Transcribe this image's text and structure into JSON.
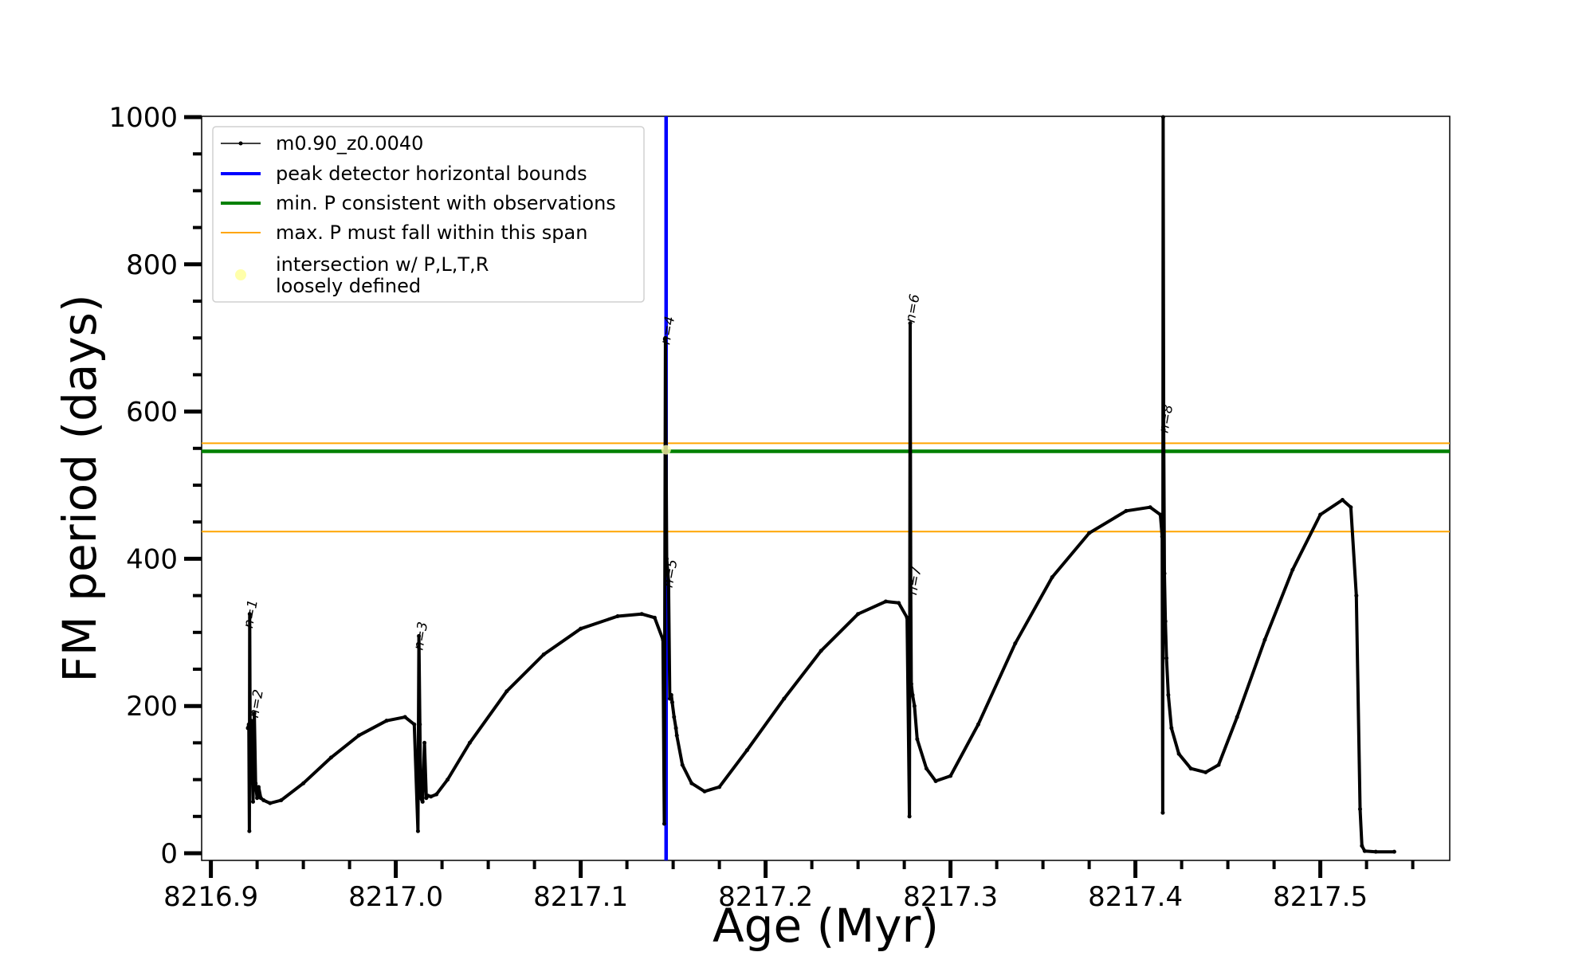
{
  "chart_data": {
    "type": "line",
    "xlabel": "Age (Myr)",
    "ylabel": "FM period (days)",
    "xlim": [
      8216.895,
      8217.57
    ],
    "ylim": [
      0,
      1000
    ],
    "x_ticks": [
      8216.9,
      8217.0,
      8217.1,
      8217.2,
      8217.3,
      8217.4,
      8217.5
    ],
    "x_tick_labels": [
      "8216.9",
      "8217.0",
      "8217.1",
      "8217.2",
      "8217.3",
      "8217.4",
      "8217.5"
    ],
    "x_minor_step": 0.025,
    "y_ticks": [
      0,
      200,
      400,
      600,
      800,
      1000
    ],
    "y_tick_labels": [
      "0",
      "200",
      "400",
      "600",
      "800",
      "1000"
    ],
    "y_minor_step": 50,
    "grid": false,
    "legend_position": "top-left",
    "legend": [
      {
        "label": "m0.90_z0.0040",
        "kind": "line-marker",
        "color": "#000000"
      },
      {
        "label": "peak detector horizontal bounds",
        "kind": "line",
        "color": "#0000ff"
      },
      {
        "label": "min. P consistent with observations",
        "kind": "line",
        "color": "#008000"
      },
      {
        "label": "max. P must fall within this span",
        "kind": "line",
        "color": "#ffa500"
      },
      {
        "label_lines": [
          "intersection w/ P,L,T,R",
          "loosely defined"
        ],
        "kind": "marker",
        "color": "#ffffaa"
      }
    ],
    "series": [
      {
        "name": "m0.90_z0.0040",
        "color": "#000000",
        "x": [
          8216.92,
          8216.9205,
          8216.9208,
          8216.921,
          8216.9212,
          8216.9218,
          8216.9228,
          8216.9235,
          8216.9242,
          8216.925,
          8216.9258,
          8216.927,
          8216.9285,
          8216.932,
          8216.938,
          8216.95,
          8216.965,
          8216.98,
          8216.995,
          8217.005,
          8217.01,
          8217.012,
          8217.0125,
          8217.013,
          8217.0135,
          8217.0145,
          8217.0155,
          8217.0165,
          8217.0175,
          8217.019,
          8217.022,
          8217.028,
          8217.04,
          8217.06,
          8217.08,
          8217.1,
          8217.12,
          8217.133,
          8217.14,
          8217.1445,
          8217.1452,
          8217.1458,
          8217.1465,
          8217.1475,
          8217.1482,
          8217.149,
          8217.1495,
          8217.1505,
          8217.1515,
          8217.152,
          8217.155,
          8217.16,
          8217.167,
          8217.175,
          8217.19,
          8217.21,
          8217.23,
          8217.25,
          8217.265,
          8217.272,
          8217.2765,
          8217.2778,
          8217.2782,
          8217.2785,
          8217.2788,
          8217.2795,
          8217.2805,
          8217.282,
          8217.287,
          8217.292,
          8217.3,
          8217.315,
          8217.335,
          8217.355,
          8217.375,
          8217.395,
          8217.408,
          8217.4135,
          8217.4145,
          8217.4148,
          8217.415,
          8217.4153,
          8217.4157,
          8217.4162,
          8217.4168,
          8217.4178,
          8217.4195,
          8217.4235,
          8217.43,
          8217.438,
          8217.445,
          8217.455,
          8217.47,
          8217.485,
          8217.5,
          8217.512,
          8217.5165,
          8217.5195,
          8217.5215,
          8217.5225,
          8217.524,
          8217.53,
          8217.54
        ],
        "y": [
          170,
          175,
          30,
          325,
          175,
          180,
          70,
          190,
          95,
          75,
          90,
          75,
          72,
          68,
          72,
          95,
          130,
          160,
          180,
          185,
          175,
          30,
          295,
          175,
          75,
          70,
          150,
          75,
          78,
          77,
          80,
          100,
          150,
          220,
          270,
          305,
          322,
          325,
          320,
          290,
          40,
          700,
          400,
          370,
          210,
          215,
          205,
          185,
          170,
          160,
          120,
          95,
          84,
          90,
          140,
          210,
          275,
          325,
          342,
          340,
          320,
          50,
          720,
          370,
          230,
          215,
          200,
          155,
          115,
          98,
          105,
          175,
          285,
          375,
          435,
          465,
          470,
          460,
          430,
          55,
          1000,
          575,
          380,
          315,
          265,
          215,
          170,
          135,
          115,
          110,
          120,
          185,
          290,
          385,
          460,
          480,
          470,
          350,
          60,
          10,
          3,
          2,
          2
        ]
      }
    ],
    "vertical_lines": [
      {
        "series": "peak detector horizontal bounds",
        "x": 8217.1462,
        "color": "#0000ff"
      }
    ],
    "horizontal_lines": [
      {
        "series": "min. P consistent with observations",
        "y": 546,
        "color": "#008000"
      },
      {
        "series": "max. P must fall within this span",
        "y": 557,
        "color": "#ffa500"
      },
      {
        "series": "max. P must fall within this span",
        "y": 437,
        "color": "#ffa500"
      }
    ],
    "points": [
      {
        "series": "intersection w/ P,L,T,R loosely defined",
        "x": 8217.1462,
        "y": 548,
        "color": "#ffffaa"
      }
    ],
    "annotations": [
      {
        "text": "n=1",
        "x": 8216.9225,
        "y": 305
      },
      {
        "text": "n=2",
        "x": 8216.9255,
        "y": 183
      },
      {
        "text": "n=3",
        "x": 8217.0145,
        "y": 275
      },
      {
        "text": "n=4",
        "x": 8217.148,
        "y": 690
      },
      {
        "text": "n=5",
        "x": 8217.1495,
        "y": 360
      },
      {
        "text": "n=6",
        "x": 8217.2805,
        "y": 720
      },
      {
        "text": "n=7",
        "x": 8217.2815,
        "y": 350
      },
      {
        "text": "n=8",
        "x": 8217.4175,
        "y": 570
      }
    ]
  }
}
